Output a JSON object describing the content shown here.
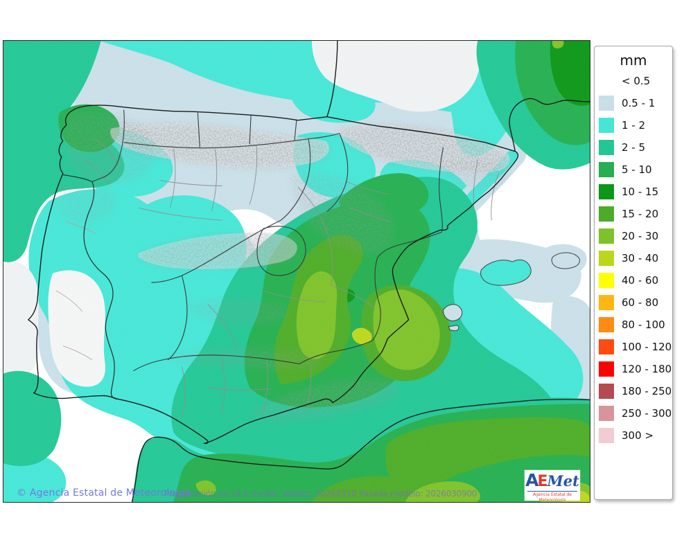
{
  "footer": {
    "copyright": "© Agencia Estatal de Meteorología",
    "caption": "Precipitación en 24 h media. Validez: 20260310 Pasada modelo: 2026030900"
  },
  "logo": {
    "letter_a": "A",
    "letter_e": "E",
    "letter_met": "Met",
    "subtitle": "Agencia Estatal de Meteorología"
  },
  "legend": {
    "title": "mm",
    "items": [
      {
        "key": "lt05",
        "label": "< 0.5",
        "color": "#ffffff",
        "swatch": false
      },
      {
        "key": "r05_1",
        "label": "0.5 - 1",
        "color": "#c9dfe8",
        "swatch": true
      },
      {
        "key": "r1_2",
        "label": "1 - 2",
        "color": "#45e6d6",
        "swatch": true
      },
      {
        "key": "r2_5",
        "label": "2 - 5",
        "color": "#22c795",
        "swatch": true
      },
      {
        "key": "r5_10",
        "label": "5 - 10",
        "color": "#25af50",
        "swatch": true
      },
      {
        "key": "r10_15",
        "label": "10 - 15",
        "color": "#0c9718",
        "swatch": true
      },
      {
        "key": "r15_20",
        "label": "15 - 20",
        "color": "#4dac27",
        "swatch": true
      },
      {
        "key": "r20_30",
        "label": "20 - 30",
        "color": "#7ec229",
        "swatch": true
      },
      {
        "key": "r30_40",
        "label": "30 - 40",
        "color": "#bcd61b",
        "swatch": true
      },
      {
        "key": "r40_60",
        "label": "40 - 60",
        "color": "#ffff00",
        "swatch": true
      },
      {
        "key": "r60_80",
        "label": "60 - 80",
        "color": "#ffb612",
        "swatch": true
      },
      {
        "key": "r80_100",
        "label": "80 - 100",
        "color": "#ff8b12",
        "swatch": true
      },
      {
        "key": "r100_120",
        "label": "100 - 120",
        "color": "#ff4a10",
        "swatch": true
      },
      {
        "key": "r120_180",
        "label": "120 - 180",
        "color": "#fe0000",
        "swatch": true
      },
      {
        "key": "r180_250",
        "label": "180 - 250",
        "color": "#b54a50",
        "swatch": true
      },
      {
        "key": "r250_300",
        "label": "250 - 300",
        "color": "#d9949a",
        "swatch": true
      },
      {
        "key": "gt300",
        "label": "300 >",
        "color": "#f2ccd3",
        "swatch": true
      }
    ]
  }
}
